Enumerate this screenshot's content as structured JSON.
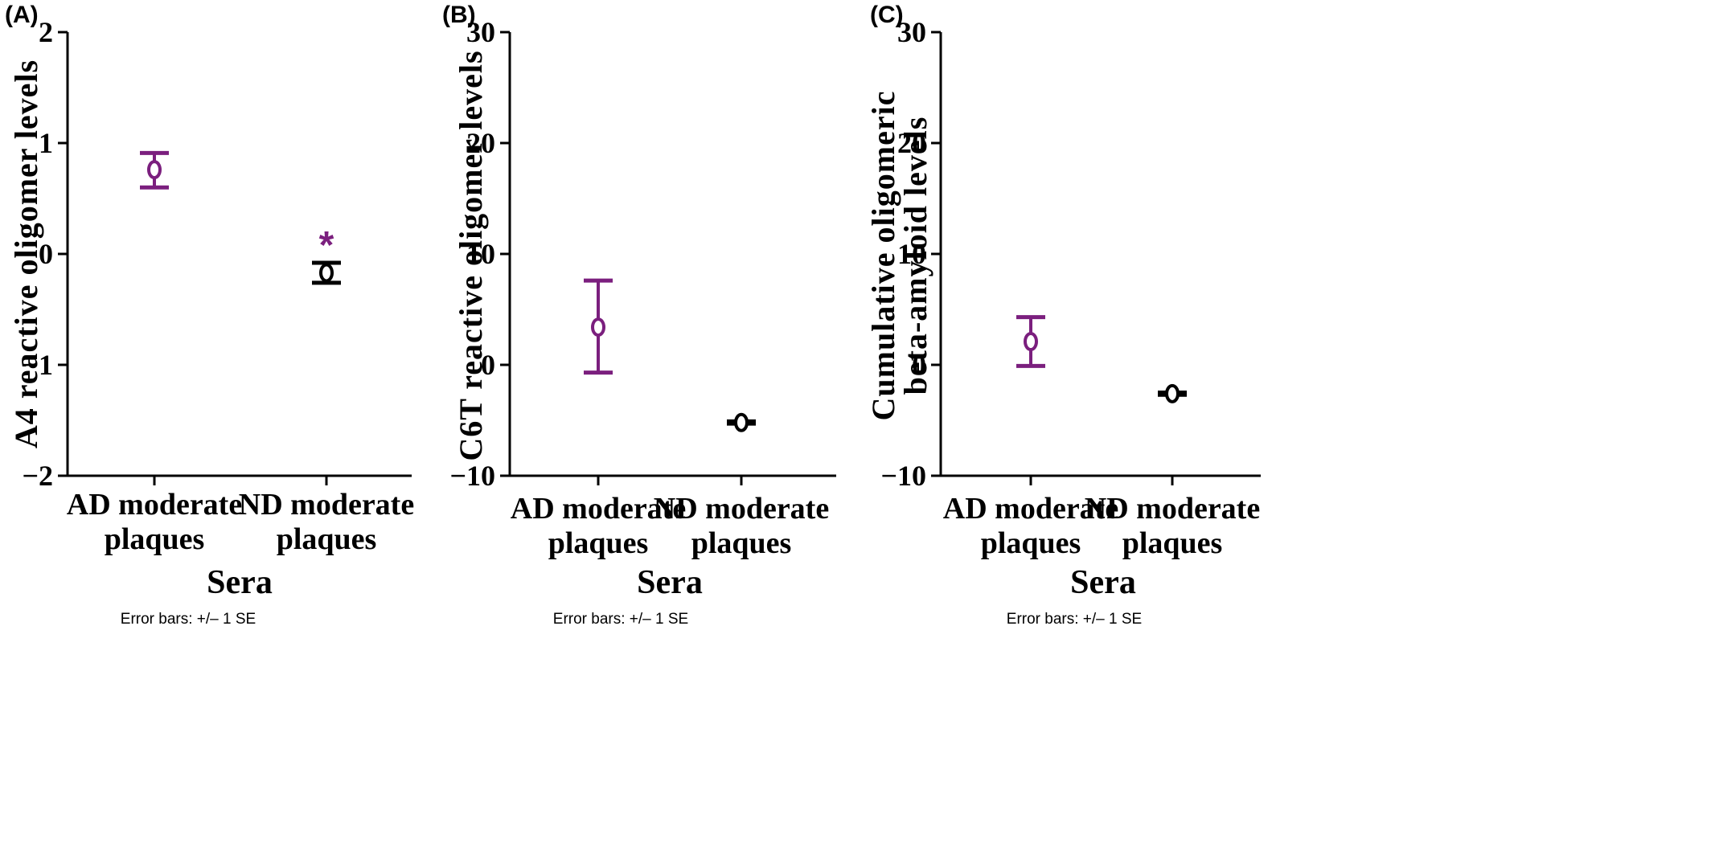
{
  "chart_data": [
    {
      "panel": "(A)",
      "type": "scatter",
      "ylabel": [
        "A4 reactive oligomer levels"
      ],
      "xlabel": "Sera",
      "note": "Error bars: +/– 1 SE",
      "ylim": [
        -2,
        2
      ],
      "yticks": [
        2,
        1,
        0,
        -1,
        -2
      ],
      "ytick_labels": [
        "2",
        "1",
        "0",
        "−1",
        "−2"
      ],
      "categories": [
        [
          "AD moderate",
          "plaques"
        ],
        [
          "ND moderate",
          "plaques"
        ]
      ],
      "points": [
        {
          "mean": 0.76,
          "lower": 0.6,
          "upper": 0.91,
          "color": "#7B1F7E",
          "annotation": ""
        },
        {
          "mean": -0.17,
          "lower": -0.26,
          "upper": -0.08,
          "color": "#000000",
          "annotation": "*"
        }
      ]
    },
    {
      "panel": "(B)",
      "type": "scatter",
      "ylabel": [
        "C6T reactive oligomer levels"
      ],
      "xlabel": "Sera",
      "note": "Error bars: +/– 1 SE",
      "ylim": [
        -10,
        30
      ],
      "yticks": [
        30,
        20,
        10,
        0,
        -10
      ],
      "ytick_labels": [
        "30",
        "20",
        "10",
        "0",
        "−10"
      ],
      "categories": [
        [
          "AD moderate",
          "plaques"
        ],
        [
          "ND moderate",
          "plaques"
        ]
      ],
      "points": [
        {
          "mean": 3.4,
          "lower": -0.7,
          "upper": 7.6,
          "color": "#7B1F7E",
          "annotation": ""
        },
        {
          "mean": -5.2,
          "lower": -5.3,
          "upper": -5.1,
          "color": "#000000",
          "annotation": ""
        }
      ]
    },
    {
      "panel": "(C)",
      "type": "scatter",
      "ylabel": [
        "Cumulative oligomeric",
        "beta-amyloid levels"
      ],
      "xlabel": "Sera",
      "note": "Error bars: +/– 1 SE",
      "ylim": [
        -10,
        30
      ],
      "yticks": [
        30,
        20,
        10,
        0,
        -10
      ],
      "ytick_labels": [
        "30",
        "20",
        "10",
        "0",
        "−10"
      ],
      "categories": [
        [
          "AD moderate",
          "plaques"
        ],
        [
          "ND moderate",
          "plaques"
        ]
      ],
      "points": [
        {
          "mean": 2.1,
          "lower": -0.1,
          "upper": 4.3,
          "color": "#7B1F7E",
          "annotation": ""
        },
        {
          "mean": -2.6,
          "lower": -2.7,
          "upper": -2.5,
          "color": "#000000",
          "annotation": ""
        }
      ]
    }
  ]
}
